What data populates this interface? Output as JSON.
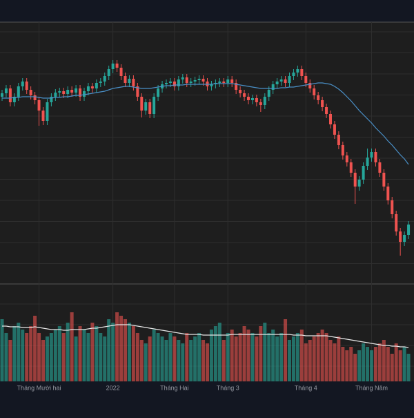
{
  "chart_data": {
    "type": "candlestick",
    "xticks": [
      {
        "value": 9,
        "label": "Tháng Mười hai"
      },
      {
        "value": 27,
        "label": "2022"
      },
      {
        "value": 42,
        "label": "Tháng Hai"
      },
      {
        "value": 55,
        "label": "Tháng 3"
      },
      {
        "value": 74,
        "label": "Tháng 4"
      },
      {
        "value": 90,
        "label": "Tháng Năm"
      }
    ],
    "ylim": [
      0,
      378
    ],
    "y2lim": [
      0,
      140
    ],
    "up_color": "#26a69a",
    "down_color": "#ef5350",
    "ma_color": "#4a90c8",
    "volume_ma_color": "#e8e8e8",
    "open": [
      270,
      275,
      282,
      262,
      270,
      285,
      292,
      280,
      272,
      265,
      250,
      235,
      262,
      270,
      276,
      278,
      274,
      280,
      276,
      282,
      270,
      278,
      285,
      282,
      290,
      292,
      300,
      310,
      318,
      312,
      300,
      290,
      296,
      285,
      270,
      250,
      262,
      245,
      270,
      282,
      288,
      290,
      292,
      285,
      295,
      298,
      290,
      292,
      294,
      296,
      292,
      285,
      288,
      290,
      292,
      290,
      295,
      290,
      280,
      275,
      270,
      265,
      268,
      262,
      258,
      270,
      280,
      288,
      292,
      295,
      290,
      300,
      305,
      310,
      300,
      290,
      282,
      272,
      265,
      255,
      245,
      230,
      215,
      200,
      185,
      175,
      160,
      140,
      150,
      170,
      182,
      190,
      175,
      160,
      140,
      120,
      100,
      75,
      60,
      70
    ],
    "high": [
      280,
      287,
      287,
      275,
      290,
      297,
      297,
      285,
      277,
      270,
      255,
      267,
      275,
      281,
      283,
      283,
      285,
      285,
      287,
      287,
      283,
      290,
      290,
      295,
      297,
      305,
      315,
      323,
      323,
      317,
      305,
      301,
      301,
      290,
      275,
      267,
      267,
      275,
      287,
      293,
      295,
      297,
      297,
      300,
      303,
      303,
      297,
      299,
      301,
      301,
      297,
      293,
      295,
      297,
      297,
      300,
      300,
      295,
      285,
      280,
      275,
      273,
      273,
      267,
      275,
      285,
      293,
      297,
      300,
      300,
      305,
      310,
      315,
      315,
      305,
      295,
      287,
      277,
      270,
      260,
      250,
      235,
      220,
      205,
      190,
      180,
      165,
      155,
      175,
      195,
      195,
      195,
      180,
      165,
      145,
      125,
      105,
      80,
      75,
      90
    ],
    "low": [
      264,
      269,
      256,
      256,
      264,
      279,
      274,
      266,
      259,
      228,
      229,
      229,
      256,
      264,
      270,
      268,
      268,
      270,
      270,
      264,
      264,
      272,
      276,
      276,
      284,
      286,
      294,
      304,
      306,
      294,
      284,
      284,
      279,
      264,
      240,
      244,
      239,
      239,
      264,
      276,
      282,
      284,
      279,
      279,
      289,
      284,
      284,
      286,
      288,
      286,
      279,
      279,
      282,
      284,
      284,
      284,
      284,
      274,
      269,
      264,
      259,
      259,
      256,
      248,
      252,
      264,
      274,
      282,
      286,
      284,
      284,
      294,
      299,
      294,
      284,
      276,
      266,
      259,
      249,
      239,
      224,
      209,
      194,
      179,
      169,
      154,
      115,
      134,
      144,
      164,
      176,
      169,
      154,
      134,
      114,
      94,
      69,
      40,
      54,
      64
    ],
    "close": [
      275,
      282,
      262,
      270,
      285,
      292,
      280,
      272,
      265,
      250,
      235,
      262,
      270,
      276,
      278,
      274,
      280,
      276,
      282,
      270,
      278,
      285,
      282,
      290,
      292,
      300,
      310,
      318,
      312,
      300,
      290,
      296,
      285,
      270,
      250,
      262,
      245,
      270,
      282,
      288,
      290,
      292,
      285,
      295,
      298,
      290,
      292,
      294,
      296,
      292,
      285,
      288,
      290,
      292,
      290,
      295,
      290,
      280,
      275,
      270,
      265,
      268,
      262,
      258,
      270,
      280,
      288,
      292,
      295,
      290,
      300,
      305,
      310,
      300,
      290,
      282,
      272,
      265,
      255,
      245,
      230,
      215,
      200,
      185,
      175,
      160,
      140,
      150,
      170,
      182,
      190,
      175,
      160,
      140,
      120,
      100,
      75,
      60,
      70,
      85
    ],
    "ma": [
      268,
      268,
      268,
      269,
      269,
      270,
      270,
      270,
      270,
      269,
      268,
      268,
      268,
      269,
      269,
      270,
      270,
      271,
      272,
      272,
      273,
      274,
      275,
      276,
      277,
      278,
      280,
      282,
      283,
      284,
      285,
      285,
      284,
      283,
      282,
      282,
      282,
      283,
      284,
      285,
      286,
      286,
      287,
      287,
      287,
      288,
      288,
      288,
      288,
      288,
      288,
      288,
      289,
      289,
      289,
      289,
      289,
      288,
      287,
      286,
      285,
      284,
      283,
      282,
      282,
      282,
      282,
      282,
      283,
      283,
      284,
      284,
      285,
      286,
      287,
      288,
      289,
      290,
      290,
      289,
      288,
      285,
      281,
      276,
      270,
      264,
      257,
      250,
      244,
      238,
      232,
      225,
      219,
      213,
      206,
      200,
      193,
      186,
      180,
      172
    ],
    "volume": [
      90,
      70,
      60,
      80,
      85,
      75,
      70,
      80,
      95,
      70,
      60,
      65,
      70,
      75,
      80,
      70,
      85,
      100,
      65,
      80,
      75,
      70,
      85,
      80,
      70,
      65,
      90,
      85,
      100,
      95,
      90,
      85,
      80,
      70,
      60,
      55,
      65,
      75,
      70,
      65,
      60,
      70,
      65,
      60,
      55,
      70,
      60,
      65,
      70,
      60,
      55,
      75,
      80,
      85,
      60,
      70,
      75,
      65,
      70,
      80,
      75,
      70,
      65,
      80,
      85,
      70,
      75,
      65,
      70,
      90,
      60,
      65,
      70,
      75,
      55,
      60,
      65,
      70,
      75,
      70,
      60,
      55,
      65,
      50,
      45,
      50,
      40,
      45,
      55,
      50,
      45,
      50,
      55,
      60,
      50,
      40,
      55,
      45,
      50,
      40
    ],
    "volume_ma": [
      80,
      80,
      79,
      79,
      79,
      78,
      78,
      78,
      79,
      78,
      77,
      76,
      75,
      75,
      75,
      74,
      74,
      75,
      75,
      75,
      75,
      76,
      77,
      77,
      78,
      79,
      80,
      81,
      82,
      82,
      82,
      82,
      81,
      80,
      79,
      78,
      77,
      76,
      75,
      74,
      73,
      72,
      71,
      70,
      69,
      68,
      68,
      68,
      68,
      67,
      67,
      67,
      67,
      67,
      67,
      67,
      68,
      68,
      68,
      68,
      68,
      68,
      68,
      68,
      68,
      68,
      68,
      68,
      68,
      68,
      68,
      67,
      67,
      67,
      66,
      66,
      66,
      66,
      66,
      66,
      65,
      64,
      63,
      62,
      61,
      60,
      59,
      58,
      57,
      56,
      55,
      54,
      53,
      52,
      52,
      51,
      51,
      50,
      50,
      49
    ]
  }
}
